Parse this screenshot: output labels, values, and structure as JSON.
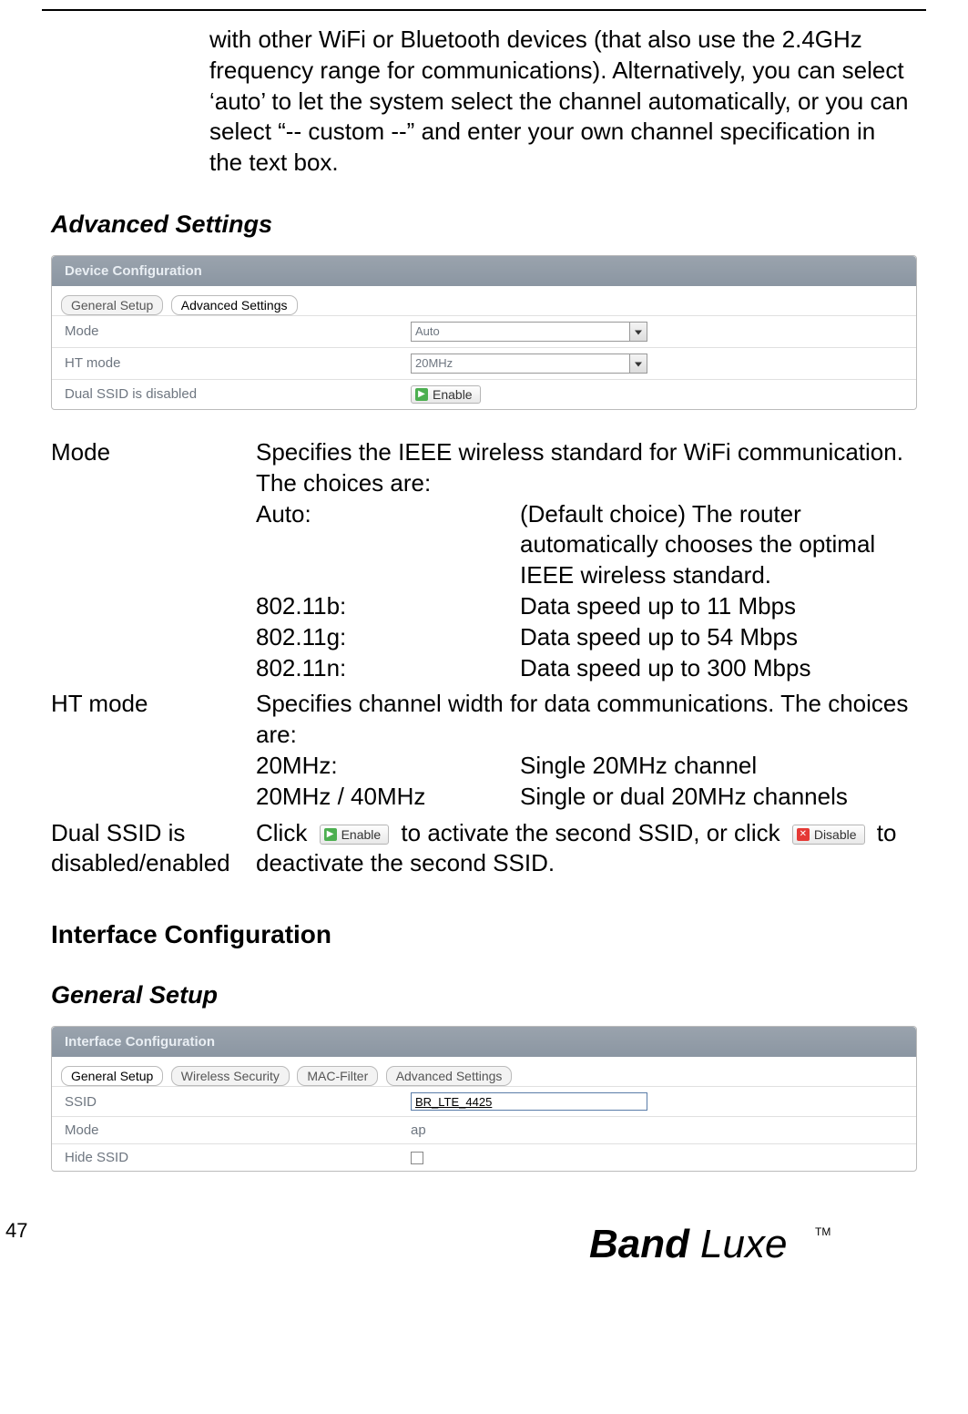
{
  "intro_paragraph": "with other WiFi or Bluetooth devices (that also use the 2.4GHz frequency range for communications). Alternatively, you can select ‘auto’ to let the system select the channel automatically, or you can select “-- custom --” and enter your own channel specification in the text box.",
  "section1": {
    "heading": "Advanced Settings",
    "panel_title": "Device Configuration",
    "tabs": {
      "general": "General Setup",
      "advanced": "Advanced Settings"
    },
    "rows": {
      "mode_label": "Mode",
      "mode_value": "Auto",
      "ht_label": "HT mode",
      "ht_value": "20MHz",
      "dual_label": "Dual SSID is disabled",
      "enable_label": "Enable"
    }
  },
  "desc": {
    "mode": {
      "term": "Mode",
      "intro": "Specifies the IEEE wireless standard for WiFi communication. The choices are:",
      "rows": [
        {
          "k": "Auto:",
          "v": "(Default choice) The router automatically chooses the optimal IEEE wireless standard."
        },
        {
          "k": "802.11b:",
          "v": "Data speed up to 11 Mbps"
        },
        {
          "k": "802.11g:",
          "v": "Data speed up to 54 Mbps"
        },
        {
          "k": "802.11n:",
          "v": "Data speed up to 300 Mbps"
        }
      ]
    },
    "ht": {
      "term": "HT mode",
      "intro": "Specifies channel width for data communications. The choices are:",
      "rows": [
        {
          "k": "20MHz:",
          "v": "Single 20MHz channel"
        },
        {
          "k": "20MHz / 40MHz",
          "v": "Single or dual 20MHz channels"
        }
      ]
    },
    "dual": {
      "term": "Dual SSID is disabled/enabled",
      "click": "Click",
      "enable_label": "Enable",
      "mid": " to activate the second SSID, or click ",
      "disable_label": "Disable",
      "tail": " to deactivate the second SSID."
    }
  },
  "section2": {
    "heading": "Interface Configuration",
    "subheading": "General Setup",
    "panel_title": "Interface Configuration",
    "tabs": {
      "general": "General Setup",
      "security": "Wireless Security",
      "mac": "MAC-Filter",
      "advanced": "Advanced Settings"
    },
    "rows": {
      "ssid_label": "SSID",
      "ssid_value": "BR_LTE_4425",
      "mode_label": "Mode",
      "mode_value": "ap",
      "hide_label": "Hide SSID"
    }
  },
  "footer": {
    "page": "47",
    "brand_band": "Band",
    "brand_luxe": "Luxe",
    "tm": "TM"
  }
}
